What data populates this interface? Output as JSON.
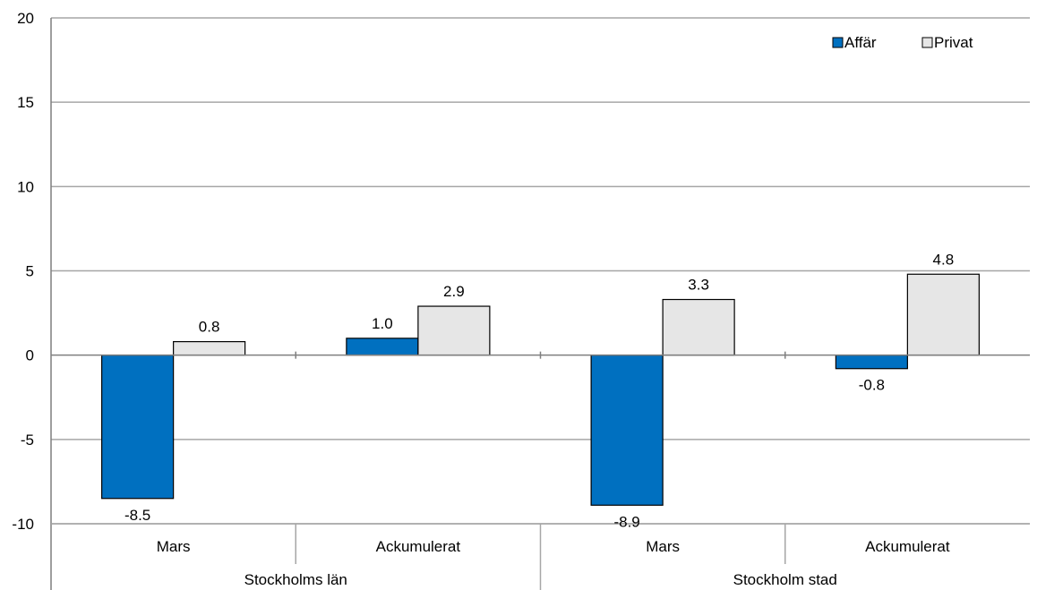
{
  "chart_data": {
    "type": "bar",
    "title": "",
    "xlabel": "",
    "ylabel": "",
    "ylim": [
      -10,
      20
    ],
    "yticks": [
      20,
      15,
      10,
      5,
      0,
      -5,
      -10
    ],
    "grid": true,
    "legend_position": "top-right",
    "groups": [
      {
        "label": "Stockholms län",
        "categories": [
          "Mars",
          "Ackumulerat"
        ]
      },
      {
        "label": "Stockholm stad",
        "categories": [
          "Mars",
          "Ackumulerat"
        ]
      }
    ],
    "categories": [
      "Mars",
      "Ackumulerat",
      "Mars",
      "Ackumulerat"
    ],
    "series": [
      {
        "name": "Affär",
        "color": "#0070C0",
        "values": [
          -8.5,
          1.0,
          -8.9,
          -0.8
        ],
        "labels": [
          "-8.5",
          "1.0",
          "-8.9",
          "-0.8"
        ]
      },
      {
        "name": "Privat",
        "color": "#E6E6E6",
        "values": [
          0.8,
          2.9,
          3.3,
          4.8
        ],
        "labels": [
          "0.8",
          "2.9",
          "3.3",
          "4.8"
        ]
      }
    ]
  }
}
